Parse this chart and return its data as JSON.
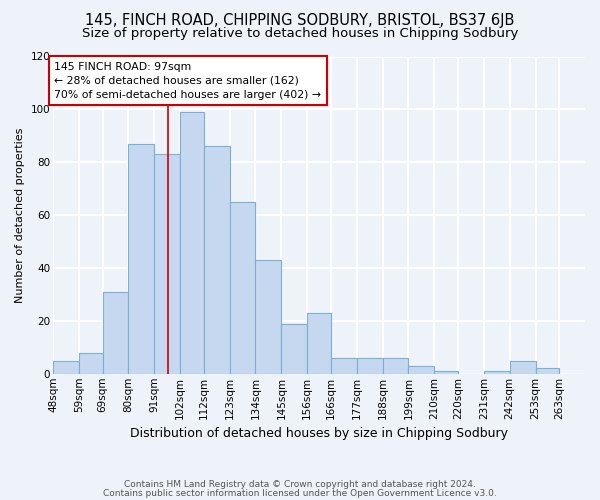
{
  "title": "145, FINCH ROAD, CHIPPING SODBURY, BRISTOL, BS37 6JB",
  "subtitle": "Size of property relative to detached houses in Chipping Sodbury",
  "xlabel": "Distribution of detached houses by size in Chipping Sodbury",
  "ylabel": "Number of detached properties",
  "footnote1": "Contains HM Land Registry data © Crown copyright and database right 2024.",
  "footnote2": "Contains public sector information licensed under the Open Government Licence v3.0.",
  "bin_labels": [
    "48sqm",
    "59sqm",
    "69sqm",
    "80sqm",
    "91sqm",
    "102sqm",
    "112sqm",
    "123sqm",
    "134sqm",
    "145sqm",
    "156sqm",
    "166sqm",
    "177sqm",
    "188sqm",
    "199sqm",
    "210sqm",
    "220sqm",
    "231sqm",
    "242sqm",
    "253sqm",
    "263sqm"
  ],
  "bin_edges": [
    48,
    59,
    69,
    80,
    91,
    102,
    112,
    123,
    134,
    145,
    156,
    166,
    177,
    188,
    199,
    210,
    220,
    231,
    242,
    253,
    263,
    274
  ],
  "bar_heights": [
    5,
    8,
    31,
    87,
    83,
    99,
    86,
    65,
    43,
    19,
    23,
    6,
    6,
    6,
    3,
    1,
    0,
    1,
    5,
    2,
    0
  ],
  "bar_color": "#c5d8f0",
  "bar_edge_color": "#7bafd4",
  "vline_x": 97,
  "vline_color": "#cc0000",
  "annotation_title": "145 FINCH ROAD: 97sqm",
  "annotation_line1": "← 28% of detached houses are smaller (162)",
  "annotation_line2": "70% of semi-detached houses are larger (402) →",
  "annotation_box_color": "white",
  "annotation_box_edge": "#cc0000",
  "ylim": [
    0,
    120
  ],
  "yticks": [
    0,
    20,
    40,
    60,
    80,
    100,
    120
  ],
  "bg_color": "#eef2f9",
  "grid_color": "white",
  "title_fontsize": 10.5,
  "subtitle_fontsize": 9.5,
  "tick_fontsize": 7.5,
  "ylabel_fontsize": 8,
  "xlabel_fontsize": 9
}
